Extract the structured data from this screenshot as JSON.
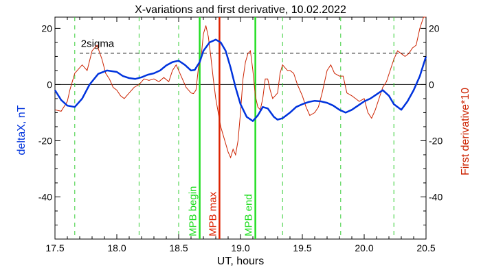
{
  "chart_data": {
    "type": "line",
    "title": "X-variations and first derivative, 10.02.2022",
    "xlabel": "UT, hours",
    "ylabel_left": "deltaX, nT",
    "ylabel_right": "First derivative*10",
    "xlim": [
      17.5,
      20.5
    ],
    "ylim": [
      -55,
      24
    ],
    "x_ticks": [
      17.5,
      18.0,
      18.5,
      19.0,
      19.5,
      20.0,
      20.5
    ],
    "x_tick_labels": [
      "17.5",
      "18.0",
      "18.5",
      "19.0",
      "19.5",
      "20.0",
      "20.5"
    ],
    "y_ticks": [
      20,
      0,
      -20,
      -40
    ],
    "y_tick_labels_left": [
      "20",
      "0",
      "-20",
      "-40"
    ],
    "y_tick_labels_right": [
      "20",
      "0",
      "-20",
      "-40"
    ],
    "sigma_level": 11.2,
    "sigma_label": "2sigma",
    "zero_line": 0,
    "colors": {
      "deltax": "#0033dd",
      "derivative": "#cc2200",
      "mpb": "#22dd22",
      "mpb_max": "#dd2200",
      "guides": "#33cc33",
      "sigma": "#000000"
    },
    "vertical_markers": [
      {
        "x": 18.67,
        "label": "MPB begin",
        "role": "mpb"
      },
      {
        "x": 18.83,
        "label": "MPB max",
        "role": "mpb_max"
      },
      {
        "x": 19.12,
        "label": "MPB end",
        "role": "mpb"
      }
    ],
    "guide_lines": [
      17.66,
      18.18,
      18.5,
      19.34,
      19.81,
      20.24
    ],
    "series": [
      {
        "key": "deltax",
        "axis": "left",
        "x": [
          17.5,
          17.55,
          17.6,
          17.66,
          17.72,
          17.78,
          17.85,
          17.92,
          18.0,
          18.05,
          18.1,
          18.15,
          18.2,
          18.25,
          18.3,
          18.35,
          18.4,
          18.45,
          18.5,
          18.55,
          18.6,
          18.63,
          18.67,
          18.7,
          18.75,
          18.8,
          18.84,
          18.88,
          18.92,
          18.96,
          19.0,
          19.05,
          19.1,
          19.14,
          19.18,
          19.22,
          19.27,
          19.3,
          19.34,
          19.4,
          19.45,
          19.5,
          19.55,
          19.6,
          19.65,
          19.7,
          19.75,
          19.8,
          19.85,
          19.9,
          19.95,
          20.0,
          20.05,
          20.1,
          20.15,
          20.2,
          20.24,
          20.3,
          20.35,
          20.4,
          20.45,
          20.5
        ],
        "y": [
          -2,
          -5.5,
          -7.5,
          -8,
          -5,
          0,
          3.8,
          5,
          4.5,
          3,
          2.3,
          2,
          2.6,
          3.5,
          4,
          5,
          6.8,
          8,
          8.5,
          7,
          5,
          5.2,
          8,
          12,
          15,
          16,
          15,
          12,
          6,
          -1,
          -7,
          -11.5,
          -13,
          -11,
          -8,
          -8.5,
          -11.5,
          -12.5,
          -12,
          -10,
          -8,
          -7,
          -6.2,
          -5.8,
          -6,
          -6.5,
          -7.5,
          -9,
          -10,
          -9,
          -7.5,
          -6,
          -5,
          -3.5,
          -2,
          -4,
          -7,
          -9,
          -6,
          -2,
          3,
          10
        ]
      },
      {
        "key": "derivative",
        "axis": "right",
        "x": [
          17.5,
          17.55,
          17.6,
          17.62,
          17.66,
          17.7,
          17.72,
          17.76,
          17.8,
          17.84,
          17.88,
          17.91,
          17.94,
          17.97,
          18.0,
          18.03,
          18.06,
          18.1,
          18.14,
          18.18,
          18.22,
          18.26,
          18.3,
          18.34,
          18.38,
          18.42,
          18.45,
          18.48,
          18.5,
          18.53,
          18.56,
          18.58,
          18.6,
          18.62,
          18.64,
          18.66,
          18.68,
          18.7,
          18.72,
          18.74,
          18.76,
          18.78,
          18.8,
          18.82,
          18.84,
          18.86,
          18.88,
          18.9,
          18.92,
          18.94,
          18.96,
          18.98,
          19.0,
          19.02,
          19.04,
          19.06,
          19.08,
          19.1,
          19.12,
          19.14,
          19.16,
          19.18,
          19.2,
          19.22,
          19.24,
          19.26,
          19.28,
          19.3,
          19.32,
          19.34,
          19.36,
          19.38,
          19.4,
          19.43,
          19.46,
          19.5,
          19.53,
          19.56,
          19.6,
          19.63,
          19.66,
          19.7,
          19.73,
          19.76,
          19.8,
          19.83,
          19.86,
          19.9,
          19.93,
          19.96,
          20.0,
          20.03,
          20.06,
          20.09,
          20.12,
          20.15,
          20.18,
          20.21,
          20.24,
          20.27,
          20.3,
          20.33,
          20.36,
          20.39,
          20.42,
          20.45,
          20.48,
          20.5
        ],
        "y": [
          -9,
          -9.5,
          -6,
          -2,
          4,
          6,
          7,
          5,
          12,
          14,
          9,
          4,
          2,
          -1,
          -2,
          -4,
          -5,
          -3,
          -1,
          0,
          2,
          1.5,
          2,
          1,
          2.5,
          1,
          5,
          7,
          5,
          2,
          -1,
          -2,
          -3,
          -3.2,
          -2,
          6,
          9,
          18,
          21,
          17,
          10,
          2,
          -5,
          -10,
          -15,
          -18,
          -21,
          -24,
          -26,
          -23,
          -25,
          -20,
          -10,
          2,
          8,
          11,
          12,
          5,
          -4,
          -8,
          -9,
          -5,
          2,
          2,
          -2,
          -5,
          -4,
          -3,
          4,
          7,
          6,
          5,
          5,
          4,
          0,
          -4,
          -8,
          -11,
          -10,
          -8,
          -3,
          5,
          7,
          4,
          3,
          3,
          -3,
          -4,
          -5,
          -6,
          -5,
          -10,
          -12,
          -9,
          -5,
          -1,
          1,
          5,
          9,
          12,
          11,
          10,
          11,
          13,
          14,
          20,
          24,
          24
        ]
      }
    ]
  }
}
